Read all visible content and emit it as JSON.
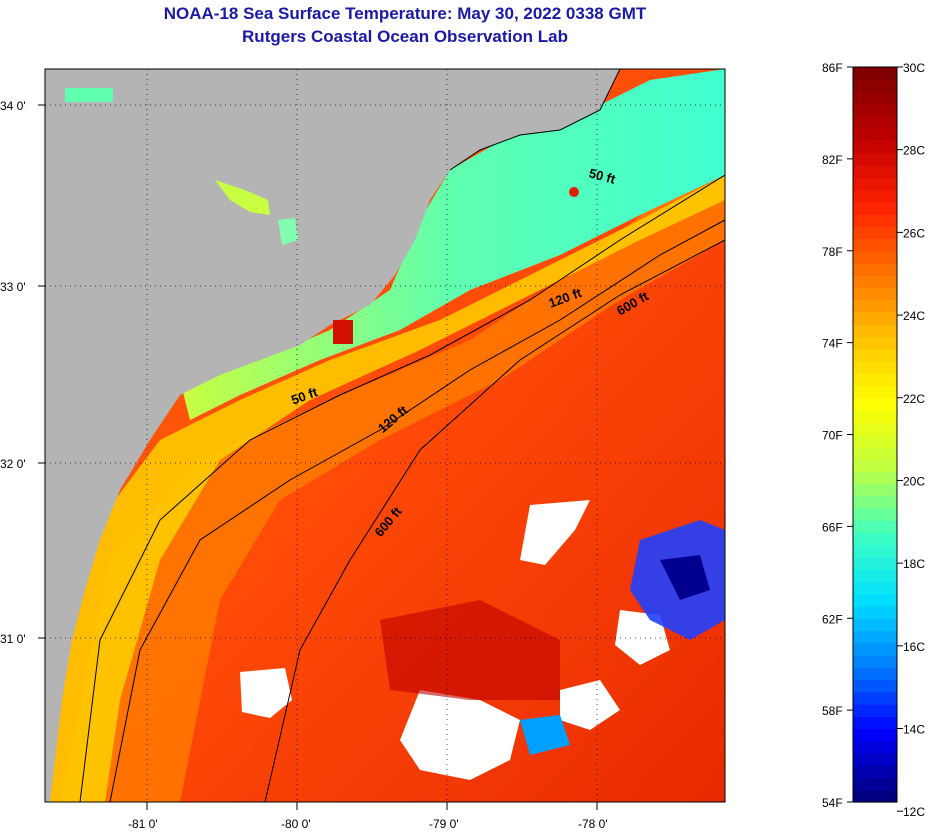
{
  "title": "NOAA-18 Sea Surface Temperature:  May 30, 2022 0338 GMT",
  "subtitle": "Rutgers Coastal Ocean Observation Lab",
  "map": {
    "lat_labels": [
      "34 0'",
      "33 0'",
      "32 0'",
      "31 0'"
    ],
    "lon_labels": [
      "-81 0'",
      "-80 0'",
      "-79 0'",
      "-78 0'"
    ],
    "land_color": "#b4b4b4",
    "cloud_color": "#ffffff"
  },
  "contours": [
    {
      "label": "50 ft"
    },
    {
      "label": "120 ft"
    },
    {
      "label": "600 ft"
    },
    {
      "label": "50 ft"
    },
    {
      "label": "120 ft"
    },
    {
      "label": "600 ft"
    }
  ],
  "colorbar": {
    "fahrenheit": [
      "86F",
      "82F",
      "78F",
      "74F",
      "70F",
      "66F",
      "62F",
      "58F",
      "54F"
    ],
    "celsius": [
      "30C",
      "28C",
      "26C",
      "24C",
      "22C",
      "20C",
      "18C",
      "16C",
      "14C",
      "12C"
    ],
    "colors": [
      "#000080",
      "#0000ff",
      "#0080ff",
      "#00e0ff",
      "#40ffc0",
      "#c0ff40",
      "#ffff00",
      "#ffc000",
      "#ff7000",
      "#ff2000",
      "#c00000",
      "#800000"
    ]
  }
}
